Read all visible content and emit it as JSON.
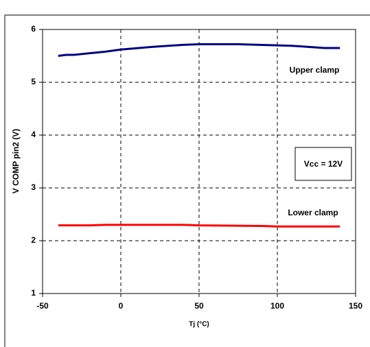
{
  "chart_data": {
    "type": "line",
    "x_label": "Tj (°C)",
    "y_label": "V COMP pin2 (V)",
    "xlim": [
      -50,
      150
    ],
    "xticks": [
      -50,
      0,
      50,
      100,
      150
    ],
    "ylim": [
      1,
      6
    ],
    "yticks": [
      1,
      2,
      3,
      4,
      5,
      6
    ],
    "grid": true,
    "series": [
      {
        "color": "#000080",
        "x": [
          -40,
          -35,
          -30,
          -20,
          -10,
          0,
          20,
          40,
          50,
          75,
          100,
          110,
          120,
          130,
          140
        ],
        "values": [
          5.5,
          5.52,
          5.52,
          5.55,
          5.58,
          5.62,
          5.67,
          5.71,
          5.72,
          5.72,
          5.7,
          5.69,
          5.67,
          5.65,
          5.65
        ]
      },
      {
        "color": "#ff0000",
        "x": [
          -40,
          -20,
          -10,
          0,
          40,
          50,
          90,
          100,
          140
        ],
        "values": [
          2.29,
          2.29,
          2.3,
          2.3,
          2.3,
          2.29,
          2.28,
          2.27,
          2.27
        ]
      }
    ],
    "annotations": [
      "Upper clamp",
      "Lower clamp",
      "Vcc = 12V"
    ]
  }
}
